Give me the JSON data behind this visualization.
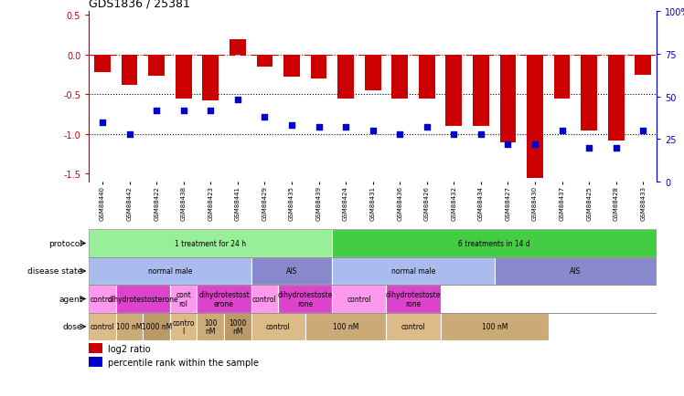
{
  "title": "GDS1836 / 25381",
  "samples": [
    "GSM88440",
    "GSM88442",
    "GSM88422",
    "GSM88438",
    "GSM88423",
    "GSM88441",
    "GSM88429",
    "GSM88435",
    "GSM88439",
    "GSM88424",
    "GSM88431",
    "GSM88436",
    "GSM88426",
    "GSM88432",
    "GSM88434",
    "GSM88427",
    "GSM88430",
    "GSM88437",
    "GSM88425",
    "GSM88428",
    "GSM88433"
  ],
  "log2_ratio": [
    -0.22,
    -0.38,
    -0.27,
    -0.55,
    -0.58,
    0.2,
    -0.15,
    -0.28,
    -0.3,
    -0.55,
    -0.45,
    -0.55,
    -0.55,
    -0.9,
    -0.9,
    -1.1,
    -1.55,
    -0.55,
    -0.95,
    -1.08,
    -0.25
  ],
  "pct_rank": [
    35,
    28,
    42,
    42,
    42,
    48,
    38,
    33,
    32,
    32,
    30,
    28,
    32,
    28,
    28,
    22,
    22,
    30,
    20,
    20,
    30
  ],
  "bar_color": "#cc0000",
  "dot_color": "#0000cc",
  "ylim_left": [
    -1.6,
    0.55
  ],
  "ylim_right": [
    0,
    100
  ],
  "yticks_left": [
    0.5,
    0.0,
    -0.5,
    -1.0,
    -1.5
  ],
  "yticks_right": [
    100,
    75,
    50,
    25,
    0
  ],
  "ytick_right_labels": [
    "100%",
    "75",
    "50",
    "25",
    "0"
  ],
  "dotted_lines": [
    -0.5,
    -1.0
  ],
  "protocol_groups": [
    {
      "label": "1 treatment for 24 h",
      "start": 0,
      "end": 9,
      "color": "#99ee99"
    },
    {
      "label": "6 treatments in 14 d",
      "start": 9,
      "end": 21,
      "color": "#44cc44"
    }
  ],
  "disease_groups": [
    {
      "label": "normal male",
      "start": 0,
      "end": 6,
      "color": "#aabbee"
    },
    {
      "label": "AIS",
      "start": 6,
      "end": 9,
      "color": "#8888cc"
    },
    {
      "label": "normal male",
      "start": 9,
      "end": 15,
      "color": "#aabbee"
    },
    {
      "label": "AIS",
      "start": 15,
      "end": 21,
      "color": "#8888cc"
    }
  ],
  "agent_groups": [
    {
      "label": "control",
      "start": 0,
      "end": 1,
      "color": "#ff99ee"
    },
    {
      "label": "dihydrotestosterone",
      "start": 1,
      "end": 3,
      "color": "#dd44cc"
    },
    {
      "label": "cont\nrol",
      "start": 3,
      "end": 4,
      "color": "#ff99ee"
    },
    {
      "label": "dihydrotestost\nerone",
      "start": 4,
      "end": 6,
      "color": "#dd44cc"
    },
    {
      "label": "control",
      "start": 6,
      "end": 7,
      "color": "#ff99ee"
    },
    {
      "label": "dihydrotestoste\nrone",
      "start": 7,
      "end": 9,
      "color": "#dd44cc"
    },
    {
      "label": "control",
      "start": 9,
      "end": 11,
      "color": "#ff99ee"
    },
    {
      "label": "dihydrotestoste\nrone",
      "start": 11,
      "end": 13,
      "color": "#dd44cc"
    }
  ],
  "dose_groups": [
    {
      "label": "control",
      "start": 0,
      "end": 1,
      "color": "#ddbb88"
    },
    {
      "label": "100 nM",
      "start": 1,
      "end": 2,
      "color": "#ccaa77"
    },
    {
      "label": "1000 nM",
      "start": 2,
      "end": 3,
      "color": "#bb9966"
    },
    {
      "label": "contro\nl",
      "start": 3,
      "end": 4,
      "color": "#ddbb88"
    },
    {
      "label": "100\nnM",
      "start": 4,
      "end": 5,
      "color": "#ccaa77"
    },
    {
      "label": "1000\nnM",
      "start": 5,
      "end": 6,
      "color": "#bb9966"
    },
    {
      "label": "control",
      "start": 6,
      "end": 8,
      "color": "#ddbb88"
    },
    {
      "label": "100 nM",
      "start": 8,
      "end": 11,
      "color": "#ccaa77"
    },
    {
      "label": "control",
      "start": 11,
      "end": 13,
      "color": "#ddbb88"
    },
    {
      "label": "100 nM",
      "start": 13,
      "end": 17,
      "color": "#ccaa77"
    }
  ],
  "row_labels": [
    "protocol",
    "disease state",
    "agent",
    "dose"
  ],
  "legend_items": [
    {
      "color": "#cc0000",
      "label": "log2 ratio"
    },
    {
      "color": "#0000cc",
      "label": "percentile rank within the sample"
    }
  ],
  "sample_separator": 9
}
